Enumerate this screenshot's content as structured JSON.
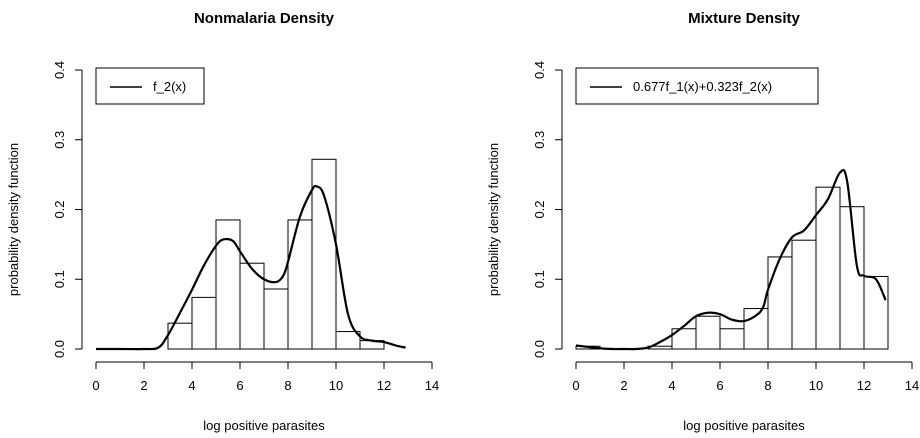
{
  "chart_data": [
    {
      "type": "histogram",
      "title": "Nonmalaria Density",
      "xlabel": "log positive parasites",
      "ylabel": "probability density function",
      "xlim": [
        0,
        14
      ],
      "ylim": [
        0,
        0.4
      ],
      "xticks": [
        0,
        2,
        4,
        6,
        8,
        10,
        12,
        14
      ],
      "yticks": [
        0.0,
        0.1,
        0.2,
        0.3,
        0.4
      ],
      "xtick_labels": [
        "0",
        "2",
        "4",
        "6",
        "8",
        "10",
        "12",
        "14"
      ],
      "ytick_labels": [
        "0.0",
        "0.1",
        "0.2",
        "0.3",
        "0.4"
      ],
      "bins": [
        {
          "x0": 3,
          "x1": 4,
          "value": 0.037
        },
        {
          "x0": 4,
          "x1": 5,
          "value": 0.074
        },
        {
          "x0": 5,
          "x1": 6,
          "value": 0.185
        },
        {
          "x0": 6,
          "x1": 7,
          "value": 0.123
        },
        {
          "x0": 7,
          "x1": 8,
          "value": 0.086
        },
        {
          "x0": 8,
          "x1": 9,
          "value": 0.185
        },
        {
          "x0": 9,
          "x1": 10,
          "value": 0.272
        },
        {
          "x0": 10,
          "x1": 11,
          "value": 0.025
        },
        {
          "x0": 11,
          "x1": 12,
          "value": 0.012
        }
      ],
      "series": [
        {
          "name": "f_2(x)",
          "x": [
            0,
            1,
            2,
            2.6,
            3,
            3.5,
            4,
            4.5,
            5,
            5.3,
            5.7,
            6,
            6.5,
            7,
            7.5,
            7.8,
            8,
            8.5,
            9,
            9.2,
            9.5,
            10,
            10.5,
            11,
            11.5,
            12,
            12.5,
            12.9
          ],
          "y": [
            0,
            0,
            0,
            0.002,
            0.02,
            0.052,
            0.085,
            0.12,
            0.148,
            0.157,
            0.155,
            0.14,
            0.115,
            0.1,
            0.096,
            0.105,
            0.125,
            0.19,
            0.228,
            0.233,
            0.22,
            0.15,
            0.05,
            0.018,
            0.012,
            0.01,
            0.005,
            0.002
          ]
        }
      ],
      "legend": "top-left",
      "grid": false
    },
    {
      "type": "histogram",
      "title": "Mixture Density",
      "xlabel": "log positive parasites",
      "ylabel": "probability density function",
      "xlim": [
        0,
        14
      ],
      "ylim": [
        0,
        0.4
      ],
      "xticks": [
        0,
        2,
        4,
        6,
        8,
        10,
        12,
        14
      ],
      "yticks": [
        0.0,
        0.1,
        0.2,
        0.3,
        0.4
      ],
      "xtick_labels": [
        "0",
        "2",
        "4",
        "6",
        "8",
        "10",
        "12",
        "14"
      ],
      "ytick_labels": [
        "0.0",
        "0.1",
        "0.2",
        "0.3",
        "0.4"
      ],
      "bins": [
        {
          "x0": 0,
          "x1": 1,
          "value": 0.004
        },
        {
          "x0": 3,
          "x1": 4,
          "value": 0.004
        },
        {
          "x0": 4,
          "x1": 5,
          "value": 0.029
        },
        {
          "x0": 5,
          "x1": 6,
          "value": 0.047
        },
        {
          "x0": 6,
          "x1": 7,
          "value": 0.029
        },
        {
          "x0": 7,
          "x1": 8,
          "value": 0.058
        },
        {
          "x0": 8,
          "x1": 9,
          "value": 0.132
        },
        {
          "x0": 9,
          "x1": 10,
          "value": 0.156
        },
        {
          "x0": 10,
          "x1": 11,
          "value": 0.232
        },
        {
          "x0": 11,
          "x1": 12,
          "value": 0.204
        },
        {
          "x0": 12,
          "x1": 13,
          "value": 0.104
        }
      ],
      "series": [
        {
          "name": "0.677f_1(x)+0.323f_2(x)",
          "x": [
            0,
            0.5,
            1,
            1.5,
            2,
            2.5,
            3,
            3.5,
            4,
            4.5,
            5,
            5.5,
            6,
            6.5,
            7,
            7.5,
            7.8,
            8,
            8.5,
            9,
            9.5,
            10,
            10.5,
            11,
            11.3,
            11.7,
            12,
            12.5,
            12.9
          ],
          "y": [
            0.005,
            0.003,
            0.001,
            0,
            0,
            0,
            0.002,
            0.01,
            0.02,
            0.033,
            0.047,
            0.052,
            0.05,
            0.042,
            0.04,
            0.048,
            0.06,
            0.085,
            0.13,
            0.16,
            0.17,
            0.192,
            0.215,
            0.253,
            0.24,
            0.12,
            0.105,
            0.1,
            0.07
          ]
        }
      ],
      "legend": "top-left",
      "grid": false
    }
  ]
}
